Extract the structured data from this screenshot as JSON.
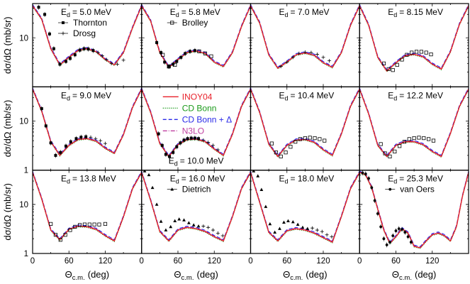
{
  "chart_data": {
    "type": "line",
    "layout": {
      "rows": 3,
      "cols": 4,
      "shared_axes": true
    },
    "x_axis": {
      "label_main": "Θ",
      "label_sub": "c.m.",
      "label_unit": "(deg)",
      "range": [
        0,
        180
      ],
      "ticks": [
        0,
        60,
        120
      ],
      "tick_labels": [
        "0",
        "60",
        "120"
      ]
    },
    "y_axis": {
      "label": "dσ/dΩ (mb/sr)",
      "scale": "log",
      "range": [
        1,
        50
      ],
      "ticks": [
        1,
        10
      ],
      "tick_labels": [
        "1",
        "10"
      ]
    },
    "grid": false,
    "series": [
      {
        "name": "INOY04",
        "color": "#e8202a",
        "style": "solid"
      },
      {
        "name": "CD Bonn",
        "color": "#1a9a1a",
        "style": "dotted"
      },
      {
        "name": "CD Bonn + Δ",
        "color": "#2a2ae8",
        "style": "dashed"
      },
      {
        "name": "N3LO",
        "color": "#c040a0",
        "style": "dashdot"
      }
    ],
    "experiments": [
      {
        "name": "Thornton",
        "marker": "filled-square"
      },
      {
        "name": "Drosg",
        "marker": "plus"
      },
      {
        "name": "Brolley",
        "marker": "open-square"
      },
      {
        "name": "Dietrich",
        "marker": "filled-triangle"
      },
      {
        "name": "van Oers",
        "marker": "filled-circle"
      }
    ],
    "panels": [
      {
        "energy": "E",
        "energy_sub": "d",
        "energy_value": "= 5.0 MeV",
        "curve": {
          "x": [
            0,
            15,
            30,
            45,
            60,
            75,
            90,
            105,
            120,
            135,
            150,
            165,
            180
          ],
          "y": [
            45,
            24,
            6,
            2.8,
            4.0,
            5.5,
            6.0,
            5.2,
            3.6,
            2.8,
            5.0,
            16,
            45
          ]
        },
        "data": [
          {
            "set": "Thornton",
            "x": [
              10,
              20,
              28,
              35,
              45,
              55,
              62,
              70,
              78,
              85,
              92,
              100
            ],
            "y": [
              42,
              30,
              12,
              6,
              2.9,
              3.3,
              3.8,
              4.5,
              5.6,
              6.0,
              5.9,
              5.5
            ]
          },
          {
            "set": "Drosg",
            "x": [
              108,
              115,
              122,
              130,
              140,
              150
            ],
            "y": [
              5.0,
              4.3,
              3.6,
              3.0,
              2.9,
              3.5
            ]
          }
        ],
        "legend": [
          {
            "set": "Thornton",
            "label": "Thornton"
          },
          {
            "set": "Drosg",
            "label": "Drosg"
          }
        ]
      },
      {
        "energy": "E",
        "energy_sub": "d",
        "energy_value": "= 5.8 MeV",
        "curve": {
          "x": [
            0,
            15,
            30,
            45,
            60,
            75,
            90,
            105,
            120,
            135,
            150,
            165,
            180
          ],
          "y": [
            45,
            22,
            5.0,
            2.5,
            3.6,
            5.0,
            5.4,
            4.8,
            3.2,
            2.6,
            5.0,
            17,
            45
          ]
        },
        "data": [
          {
            "set": "Thornton",
            "x": [
              25,
              32,
              38,
              45,
              52,
              58,
              65,
              72,
              80,
              88
            ],
            "y": [
              8.0,
              5.0,
              3.2,
              2.6,
              2.9,
              3.3,
              4.0,
              4.8,
              5.3,
              5.5
            ]
          },
          {
            "set": "Brolley",
            "x": [
              35,
              45,
              55,
              95,
              105,
              115
            ],
            "y": [
              4.5,
              2.6,
              2.8,
              5.3,
              4.8,
              4.2
            ]
          }
        ],
        "legend": [
          {
            "set": "Brolley",
            "label": "Brolley"
          }
        ]
      },
      {
        "energy": "E",
        "energy_sub": "d",
        "energy_value": "= 7.0 MeV",
        "curve": {
          "x": [
            0,
            15,
            30,
            45,
            60,
            75,
            90,
            105,
            120,
            135,
            150,
            165,
            180
          ],
          "y": [
            45,
            20,
            4.5,
            2.4,
            3.2,
            4.5,
            4.9,
            4.4,
            3.1,
            2.5,
            5.0,
            18,
            45
          ]
        },
        "data": [
          {
            "set": "Drosg",
            "x": [
              50,
              60,
              70,
              80,
              90,
              100,
              110,
              120,
              130
            ],
            "y": [
              2.6,
              3.2,
              4.0,
              4.8,
              5.1,
              5.0,
              4.6,
              4.0,
              3.4
            ]
          }
        ],
        "legend": []
      },
      {
        "energy": "E",
        "energy_sub": "d",
        "energy_value": "= 8.15 MeV",
        "curve": {
          "x": [
            0,
            15,
            30,
            45,
            60,
            75,
            90,
            105,
            120,
            135,
            150,
            165,
            180
          ],
          "y": [
            45,
            18,
            4.0,
            2.1,
            3.1,
            4.3,
            4.6,
            4.1,
            2.9,
            2.3,
            5.2,
            19,
            45
          ]
        },
        "data": [
          {
            "set": "Brolley",
            "x": [
              40,
              48,
              55,
              62,
              70,
              78,
              86,
              94,
              102,
              110,
              118
            ],
            "y": [
              3.0,
              2.3,
              2.2,
              2.8,
              3.6,
              4.5,
              5.0,
              5.2,
              5.2,
              5.0,
              4.6
            ]
          }
        ],
        "legend": []
      },
      {
        "energy": "E",
        "energy_sub": "d",
        "energy_value": "= 9.0 MeV",
        "curve": {
          "x": [
            0,
            15,
            30,
            45,
            60,
            75,
            90,
            105,
            120,
            135,
            150,
            165,
            180
          ],
          "y": [
            45,
            16,
            3.8,
            2.0,
            3.2,
            4.2,
            4.4,
            3.9,
            2.8,
            2.2,
            5.3,
            19,
            45
          ]
        },
        "data": [
          {
            "set": "Thornton",
            "x": [
              15,
              22,
              30,
              38,
              46,
              55,
              63,
              72,
              80,
              88
            ],
            "y": [
              18,
              8,
              3.6,
              2.0,
              2.3,
              3.1,
              3.8,
              4.4,
              4.7,
              4.8
            ]
          },
          {
            "set": "Drosg",
            "x": [
              96,
              104,
              112,
              120
            ],
            "y": [
              4.7,
              4.4,
              4.0,
              3.5
            ]
          }
        ],
        "legend": []
      },
      {
        "energy": "E",
        "energy_sub": "d",
        "energy_value": "= 10.0 MeV",
        "curve": {
          "x": [
            0,
            15,
            30,
            45,
            60,
            75,
            90,
            105,
            120,
            135,
            150,
            165,
            180
          ],
          "y": [
            45,
            15,
            3.5,
            1.9,
            3.3,
            4.2,
            4.3,
            3.8,
            2.7,
            2.0,
            5.4,
            20,
            45
          ]
        },
        "data": [
          {
            "set": "Thornton",
            "x": [
              28,
              34,
              40,
              46,
              52,
              58,
              64,
              70,
              76,
              82,
              88,
              94
            ],
            "y": [
              5.5,
              3.2,
              2.1,
              1.9,
              2.3,
              3.0,
              3.6,
              4.1,
              4.4,
              4.5,
              4.5,
              4.4
            ]
          },
          {
            "set": "Drosg",
            "x": [
              102,
              110,
              118,
              126
            ],
            "y": [
              4.1,
              3.7,
              3.2,
              2.6
            ]
          }
        ],
        "legend": [
          {
            "set": "INOY04",
            "label": "INOY04",
            "kind": "line"
          },
          {
            "set": "CD Bonn",
            "label": "CD Bonn",
            "kind": "line"
          },
          {
            "set": "CD Bonn + Δ",
            "label": "CD Bonn + Δ",
            "kind": "line"
          },
          {
            "set": "N3LO",
            "label": "N3LO",
            "kind": "line"
          }
        ]
      },
      {
        "energy": "E",
        "energy_sub": "d",
        "energy_value": "= 10.4 MeV",
        "curve": {
          "x": [
            0,
            15,
            30,
            45,
            60,
            75,
            90,
            105,
            120,
            135,
            150,
            165,
            180
          ],
          "y": [
            45,
            15,
            3.4,
            1.9,
            3.2,
            4.1,
            4.2,
            3.7,
            2.6,
            2.0,
            5.5,
            20,
            45
          ]
        },
        "data": [
          {
            "set": "Brolley",
            "x": [
              35,
              42,
              50,
              58,
              66,
              74,
              82,
              90,
              98,
              106,
              114,
              122
            ],
            "y": [
              3.5,
              2.3,
              1.9,
              2.3,
              3.0,
              3.8,
              4.3,
              4.5,
              4.6,
              4.5,
              4.3,
              4.0
            ]
          }
        ],
        "legend": []
      },
      {
        "energy": "E",
        "energy_sub": "d",
        "energy_value": "= 12.2 MeV",
        "curve": {
          "x": [
            0,
            15,
            30,
            45,
            60,
            75,
            90,
            105,
            120,
            135,
            150,
            165,
            180
          ],
          "y": [
            45,
            14,
            3.2,
            1.9,
            3.2,
            3.8,
            3.8,
            3.3,
            2.4,
            1.9,
            5.6,
            20,
            45
          ]
        },
        "data": [
          {
            "set": "Brolley",
            "x": [
              35,
              42,
              50,
              58,
              66,
              74,
              82,
              90,
              98,
              106,
              114,
              122
            ],
            "y": [
              3.4,
              2.2,
              1.9,
              2.4,
              3.1,
              3.8,
              4.3,
              4.5,
              4.6,
              4.5,
              4.3,
              4.0
            ]
          }
        ],
        "legend": []
      },
      {
        "energy": "E",
        "energy_sub": "d",
        "energy_value": "= 13.8 MeV",
        "curve": {
          "x": [
            0,
            15,
            30,
            45,
            60,
            75,
            90,
            105,
            120,
            135,
            150,
            165,
            180
          ],
          "y": [
            45,
            13,
            3.0,
            1.9,
            3.1,
            3.6,
            3.5,
            3.1,
            2.3,
            1.8,
            5.6,
            21,
            45
          ]
        },
        "data": [
          {
            "set": "Brolley",
            "x": [
              30,
              38,
              46,
              54,
              62,
              70,
              78,
              86,
              94,
              102,
              110,
              120
            ],
            "y": [
              4.0,
              2.4,
              1.9,
              2.4,
              3.0,
              3.5,
              3.8,
              3.9,
              3.9,
              3.9,
              3.9,
              4.0
            ]
          }
        ],
        "legend": []
      },
      {
        "energy": "E",
        "energy_sub": "d",
        "energy_value": "= 16.0 MeV",
        "curve": {
          "x": [
            0,
            15,
            30,
            45,
            60,
            75,
            90,
            105,
            120,
            135,
            150,
            165,
            180
          ],
          "y": [
            45,
            12,
            2.8,
            1.8,
            3.0,
            3.4,
            3.2,
            2.8,
            2.2,
            1.8,
            5.6,
            21,
            45
          ]
        },
        "data": [
          {
            "set": "Dietrich",
            "x": [
              5,
              12,
              18,
              25,
              32,
              40,
              48,
              55,
              62,
              70,
              78,
              86,
              94
            ],
            "y": [
              48,
              40,
              22,
              10,
              4.5,
              3.0,
              3.5,
              4.6,
              5.0,
              4.8,
              4.2,
              3.8,
              3.6
            ]
          },
          {
            "set": "Drosg",
            "x": [
              102,
              110,
              118,
              126,
              134
            ],
            "y": [
              3.6,
              3.4,
              3.0,
              2.6,
              2.3
            ]
          }
        ],
        "legend": [
          {
            "set": "Dietrich",
            "label": "Dietrich"
          }
        ]
      },
      {
        "energy": "E",
        "energy_sub": "d",
        "energy_value": "= 18.0 MeV",
        "curve": {
          "x": [
            0,
            15,
            30,
            45,
            60,
            75,
            90,
            105,
            120,
            135,
            150,
            165,
            180
          ],
          "y": [
            45,
            11,
            2.7,
            1.8,
            2.9,
            3.2,
            3.0,
            2.6,
            2.1,
            1.7,
            5.7,
            21,
            45
          ]
        },
        "data": [
          {
            "set": "Dietrich",
            "x": [
              5,
              12,
              18,
              25,
              32,
              40,
              48,
              55,
              62,
              70,
              78,
              86,
              94
            ],
            "y": [
              48,
              38,
              20,
              9,
              4.0,
              2.7,
              3.2,
              4.3,
              4.6,
              4.4,
              3.9,
              3.4,
              3.2
            ]
          },
          {
            "set": "Drosg",
            "x": [
              102,
              110,
              118,
              126,
              134
            ],
            "y": [
              3.3,
              3.0,
              2.8,
              2.4,
              2.2
            ]
          }
        ],
        "legend": []
      },
      {
        "energy": "E",
        "energy_sub": "d",
        "energy_value": "= 25.3 MeV",
        "curve": {
          "x": [
            0,
            10,
            20,
            30,
            40,
            50,
            60,
            70,
            80,
            90,
            100,
            110,
            120,
            130,
            140,
            150,
            160,
            170,
            180
          ],
          "y": [
            45,
            40,
            22,
            8,
            3.0,
            1.6,
            2.2,
            3.2,
            2.6,
            1.4,
            1.3,
            1.8,
            2.4,
            2.6,
            2.3,
            1.8,
            3.5,
            15,
            45
          ]
        },
        "data": [
          {
            "set": "van Oers",
            "x": [
              5,
              10,
              15,
              20,
              25,
              30,
              35,
              40,
              45,
              50,
              55,
              60,
              65,
              70,
              75,
              80,
              85
            ],
            "y": [
              44,
              42,
              34,
              22,
              12,
              6.5,
              3.5,
              2.0,
              1.5,
              1.7,
              2.3,
              2.9,
              3.2,
              3.1,
              2.7,
              2.2,
              1.7
            ]
          }
        ],
        "legend": [
          {
            "set": "van Oers",
            "label": "van Oers"
          }
        ]
      }
    ]
  }
}
